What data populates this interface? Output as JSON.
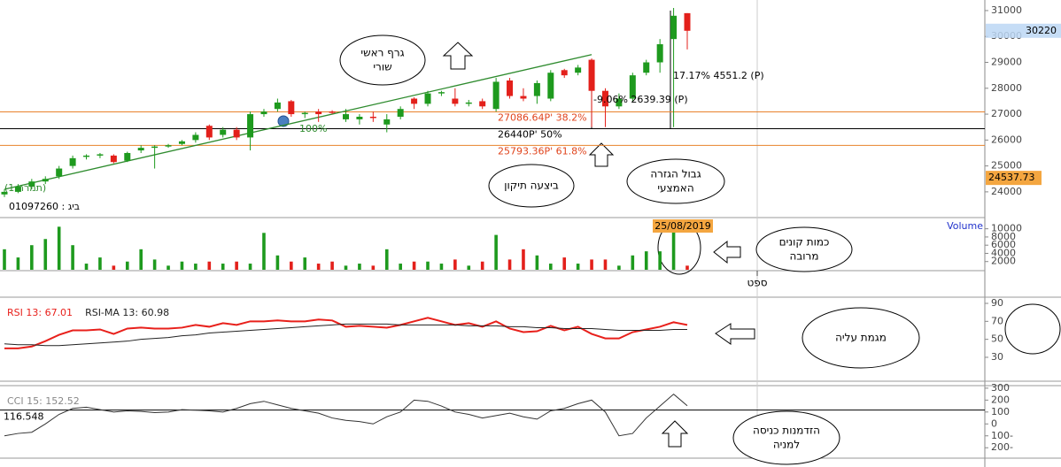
{
  "chart_data": [
    {
      "type": "candlestick",
      "open": [
        23900,
        24000,
        24200,
        24400,
        24600,
        25000,
        25350,
        25400,
        25400,
        25200,
        25600,
        25700,
        25750,
        25850,
        26000,
        26550,
        26200,
        26400,
        26100,
        27000,
        27200,
        27500,
        27000,
        27100,
        27100,
        26800,
        26800,
        26900,
        26600,
        26900,
        27600,
        27400,
        27800,
        27600,
        27400,
        27500,
        27200,
        28300,
        27700,
        27700,
        27600,
        28700,
        28600,
        29100,
        27900,
        27300,
        27600,
        28600,
        29000,
        29900,
        30900
      ],
      "high": [
        24100,
        24300,
        24500,
        24600,
        25000,
        25400,
        25450,
        25500,
        25450,
        25550,
        25800,
        25800,
        25850,
        26000,
        26300,
        26600,
        26500,
        26500,
        27100,
        27200,
        27600,
        27550,
        27100,
        27200,
        27150,
        27200,
        27000,
        27100,
        27000,
        27300,
        27650,
        27900,
        27900,
        28000,
        27550,
        27600,
        28400,
        28400,
        28000,
        28300,
        28700,
        28750,
        28900,
        29150,
        28000,
        27800,
        28600,
        29100,
        29900,
        31100,
        30900
      ],
      "low": [
        23800,
        23950,
        24100,
        24300,
        24500,
        24900,
        25250,
        25300,
        25100,
        25150,
        25500,
        24900,
        25700,
        25800,
        25900,
        26000,
        26100,
        26000,
        25600,
        26900,
        27100,
        26900,
        26850,
        26700,
        27000,
        26700,
        26600,
        26700,
        26300,
        26800,
        27200,
        27300,
        27700,
        27300,
        27300,
        27200,
        27100,
        27600,
        27500,
        27400,
        27500,
        28400,
        28500,
        26500,
        26500,
        27200,
        27500,
        28500,
        28600,
        26500,
        29500
      ],
      "close": [
        24000,
        24200,
        24400,
        24500,
        24900,
        25300,
        25400,
        25450,
        25150,
        25500,
        25700,
        25750,
        25800,
        25950,
        26200,
        26100,
        26400,
        26100,
        27000,
        27100,
        27450,
        27000,
        27050,
        27000,
        27050,
        27000,
        26900,
        26850,
        26800,
        27200,
        27400,
        27800,
        27850,
        27400,
        27450,
        27300,
        28250,
        27700,
        27600,
        28200,
        28600,
        28500,
        28800,
        27900,
        27300,
        27600,
        28500,
        29000,
        29700,
        30800,
        30220
      ],
      "up_color": "#1e9a1e",
      "down_color": "#e3201b",
      "ylim": [
        23040,
        31340
      ],
      "yticks": [
        24000,
        25000,
        26000,
        27000,
        28000,
        29000,
        30000,
        31000
      ],
      "fib_levels": [
        {
          "price": 27086.64,
          "label": "27086.64P'  38.2%",
          "color": "#e8822c",
          "text_color": "#e0441c"
        },
        {
          "price": 26440,
          "label": "26440P'  50%",
          "color": "#000000",
          "text_color": "#000000"
        },
        {
          "price": 25793.36,
          "label": "25793.36P'  61.8%",
          "color": "#e8822c",
          "text_color": "#e0441c"
        }
      ],
      "trendline": [
        24100,
        29300
      ],
      "trendline_color": "#2e8b2e",
      "last_price": 30220,
      "marker_price": 24537.73,
      "annotations": [
        "17.17% 4551.2 (P)",
        "-9.06% 2639.39 (P)",
        "100%",
        "(תמרה 1)",
        "01097260 : ביג"
      ],
      "callouts": [
        [
          "גרף ראשי",
          "שורי"
        ],
        [
          "ביצעה תיקון"
        ],
        [
          "גבול הגזרה",
          "האמצעי"
        ]
      ]
    },
    {
      "type": "bar",
      "label": "Volume",
      "date_label": "25/08/2019",
      "x_labels": [
        "ספט"
      ],
      "values": [
        5000,
        3000,
        6000,
        7500,
        10500,
        6000,
        1500,
        3000,
        1000,
        2000,
        5000,
        2500,
        1000,
        2000,
        1500,
        2000,
        1500,
        2000,
        1500,
        9000,
        3500,
        2000,
        3000,
        1500,
        2000,
        1000,
        1500,
        1000,
        5000,
        1500,
        2000,
        2000,
        1500,
        2500,
        1000,
        2000,
        8500,
        2500,
        5000,
        3500,
        1500,
        3000,
        1500,
        2500,
        2500,
        1000,
        3500,
        4500,
        4500,
        10000,
        1000
      ],
      "ylim": [
        0,
        12300
      ],
      "yticks": [
        2000,
        4000,
        6000,
        8000,
        10000
      ],
      "callouts": [
        [
          "כמות קונים",
          "מרובה"
        ]
      ]
    },
    {
      "type": "line",
      "series": [
        {
          "name": "RSI 13: 67.01",
          "color": "#e8201b",
          "values": [
            40,
            40,
            42,
            48,
            55,
            60,
            60,
            61,
            56,
            62,
            63,
            62,
            62,
            63,
            66,
            64,
            68,
            66,
            70,
            70,
            71,
            70,
            70,
            72,
            71,
            64,
            65,
            64,
            63,
            66,
            70,
            74,
            70,
            66,
            68,
            64,
            70,
            62,
            58,
            59,
            65,
            60,
            64,
            56,
            51,
            51,
            58,
            61,
            64,
            69,
            66
          ]
        },
        {
          "name": "RSI-MA 13: 60.98",
          "color": "#222222",
          "values": [
            45,
            44,
            44,
            43,
            43,
            44,
            45,
            46,
            47,
            48,
            50,
            51,
            52,
            54,
            55,
            57,
            58,
            59,
            60,
            61,
            62,
            63,
            64,
            65,
            66,
            67,
            67,
            67,
            67,
            66,
            66,
            66,
            66,
            66,
            65,
            65,
            65,
            64,
            64,
            63,
            63,
            62,
            62,
            62,
            61,
            60,
            60,
            60,
            60,
            61,
            61
          ]
        }
      ],
      "ylim": [
        4.4,
        95.9
      ],
      "yticks": [
        30,
        50,
        70,
        90
      ],
      "callouts": [
        [
          "מגמת עליה"
        ]
      ]
    },
    {
      "type": "line",
      "series": [
        {
          "name": "CCI 15: 152.52",
          "color": "#333333",
          "values": [
            -100,
            -80,
            -70,
            0,
            80,
            130,
            140,
            120,
            100,
            110,
            105,
            95,
            100,
            120,
            115,
            110,
            100,
            130,
            170,
            190,
            160,
            130,
            110,
            90,
            50,
            30,
            20,
            0,
            60,
            100,
            200,
            190,
            150,
            100,
            80,
            50,
            70,
            90,
            60,
            40,
            110,
            130,
            170,
            200,
            100,
            -100,
            -80,
            50,
            150,
            250,
            152.52
          ]
        }
      ],
      "reference_line": 116.548,
      "ylim": [
        -280,
        314
      ],
      "yticks": [
        {
          "value": -200,
          "label": "200-"
        },
        {
          "value": -100,
          "label": "100-"
        },
        0,
        100,
        200,
        300
      ],
      "callouts": [
        [
          "הזדמנות כניסה",
          "למניה"
        ]
      ]
    }
  ]
}
